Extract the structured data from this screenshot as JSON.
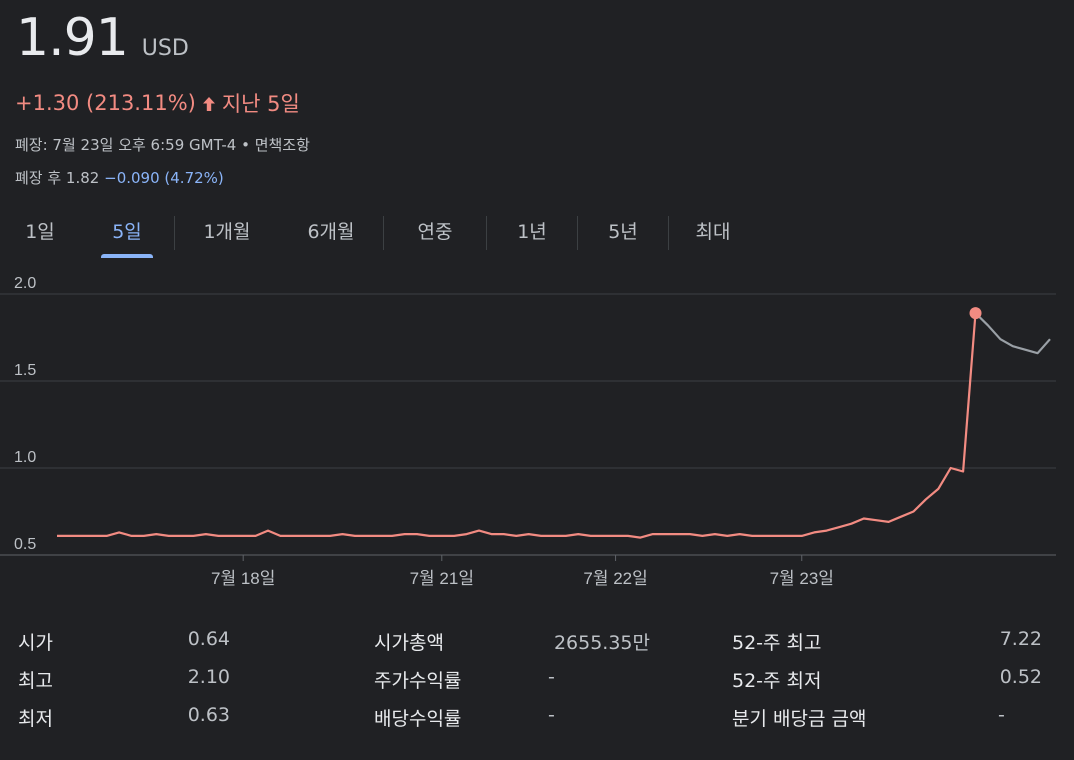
{
  "quote": {
    "price": "1.91",
    "currency": "USD",
    "change": "+1.30 (213.11%)",
    "change_period": "지난 5일",
    "close_info": "폐장: 7월 23일 오후 6:59 GMT-4 • 면책조항",
    "after_hours_label": "폐장 후 1.82",
    "after_hours_change": "−0.090 (4.72%)",
    "up_color": "#f28b82",
    "down_color": "#8ab4f8"
  },
  "tabs": [
    {
      "label": "1일",
      "active": false
    },
    {
      "label": "5일",
      "active": true
    },
    {
      "label": "1개월",
      "active": false
    },
    {
      "label": "6개월",
      "active": false
    },
    {
      "label": "연중",
      "active": false
    },
    {
      "label": "1년",
      "active": false
    },
    {
      "label": "5년",
      "active": false
    },
    {
      "label": "최대",
      "active": false
    }
  ],
  "chart_data": {
    "type": "line",
    "y_ticks": [
      "2.0",
      "1.5",
      "1.0",
      "0.5"
    ],
    "ylim": [
      0.5,
      2.0
    ],
    "x_ticks": [
      "7월 18일",
      "7월 21일",
      "7월 22일",
      "7월 23일"
    ],
    "x_tick_index": [
      15,
      31,
      45,
      60
    ],
    "series": [
      {
        "values": [
          0.61,
          0.61,
          0.61,
          0.61,
          0.61,
          0.63,
          0.61,
          0.61,
          0.62,
          0.61,
          0.61,
          0.61,
          0.62,
          0.61,
          0.61,
          0.61,
          0.61,
          0.64,
          0.61,
          0.61,
          0.61,
          0.61,
          0.61,
          0.62,
          0.61,
          0.61,
          0.61,
          0.61,
          0.62,
          0.62,
          0.61,
          0.61,
          0.61,
          0.62,
          0.64,
          0.62,
          0.62,
          0.61,
          0.62,
          0.61,
          0.61,
          0.61,
          0.62,
          0.61,
          0.61,
          0.61,
          0.61,
          0.6,
          0.62,
          0.62,
          0.62,
          0.62,
          0.61,
          0.62,
          0.61,
          0.62,
          0.61,
          0.61,
          0.61,
          0.61,
          0.61,
          0.63,
          0.64,
          0.66,
          0.68,
          0.71,
          0.7,
          0.69,
          0.72,
          0.75,
          0.82,
          0.88,
          1.0,
          0.98,
          1.89
        ]
      },
      {
        "values": [
          1.89,
          1.82,
          1.74,
          1.7,
          1.68,
          1.66,
          1.74
        ]
      }
    ],
    "highlight_value": 1.89,
    "session_color": "#f28b82",
    "after_hours_color": "#9aa0a6",
    "grid": true
  },
  "stats": {
    "col1": [
      {
        "label": "시가",
        "value": "0.64"
      },
      {
        "label": "최고",
        "value": "2.10"
      },
      {
        "label": "최저",
        "value": "0.63"
      }
    ],
    "col2": [
      {
        "label": "시가총액",
        "value": "2655.35만"
      },
      {
        "label": "주가수익률",
        "value": "-"
      },
      {
        "label": "배당수익률",
        "value": "-"
      }
    ],
    "col3": [
      {
        "label": "52-주 최고",
        "value": "7.22"
      },
      {
        "label": "52-주 최저",
        "value": "0.52"
      },
      {
        "label": "분기 배당금 금액",
        "value": "-"
      }
    ]
  }
}
